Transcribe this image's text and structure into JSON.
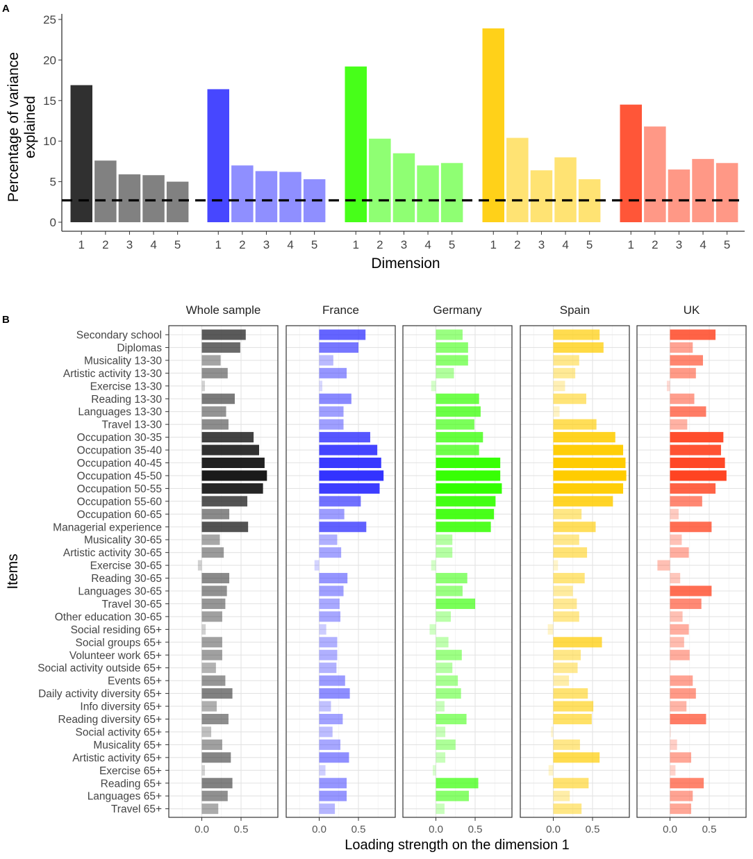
{
  "chart_data": [
    {
      "panel": "A",
      "type": "bar",
      "ylabel": "Percentage of variance\nexplained",
      "xlabel": "Dimension",
      "ylim": [
        0,
        25
      ],
      "yticks": [
        0,
        5,
        10,
        15,
        20,
        25
      ],
      "categories": [
        "1",
        "2",
        "3",
        "4",
        "5"
      ],
      "reference_line": 2.7,
      "series": [
        {
          "name": "Whole sample",
          "color": "#1a1a1a",
          "values": [
            16.9,
            7.6,
            5.9,
            5.8,
            5.0
          ]
        },
        {
          "name": "France",
          "color": "#3333ff",
          "values": [
            16.4,
            7.0,
            6.3,
            6.2,
            5.3
          ]
        },
        {
          "name": "Germany",
          "color": "#33ff00",
          "values": [
            19.2,
            10.3,
            8.5,
            7.0,
            7.3
          ]
        },
        {
          "name": "Spain",
          "color": "#ffcc00",
          "values": [
            23.9,
            10.4,
            6.4,
            8.0,
            5.3
          ]
        },
        {
          "name": "UK",
          "color": "#ff4422",
          "values": [
            14.5,
            11.8,
            6.5,
            7.8,
            7.3
          ]
        }
      ]
    },
    {
      "panel": "B",
      "type": "bar",
      "orientation": "horizontal",
      "ylabel": "Items",
      "xlabel": "Loading strength on the dimension 1",
      "xlim": [
        -0.42,
        1.0
      ],
      "xticks": [
        "0.0",
        "0.5"
      ],
      "items": [
        "Secondary school",
        "Diplomas",
        "Musicality 13-30",
        "Artistic activity 13-30",
        "Exercise 13-30",
        "Reading 13-30",
        "Languages 13-30",
        "Travel 13-30",
        "Occupation 30-35",
        "Occupation 35-40",
        "Occupation 40-45",
        "Occupation 45-50",
        "Occupation 50-55",
        "Occupation 55-60",
        "Occupation 60-65",
        "Managerial experience",
        "Musicality 30-65",
        "Artistic activity 30-65",
        "Exercise 30-65",
        "Reading 30-65",
        "Languages 30-65",
        "Travel 30-65",
        "Other education 30-65",
        "Social residing 65+",
        "Social groups 65+",
        "Volunteer work 65+",
        "Social activity outside 65+",
        "Events 65+",
        "Daily activity diversity 65+",
        "Info diversity 65+",
        "Reading diversity 65+",
        "Social activity 65+",
        "Musicality 65+",
        "Artistic activity 65+",
        "Exercise 65+",
        "Reading 65+",
        "Languages 65+",
        "Travel 65+"
      ],
      "series": [
        {
          "name": "Whole sample",
          "color": "#1a1a1a",
          "values": [
            0.56,
            0.49,
            0.24,
            0.33,
            0.04,
            0.42,
            0.31,
            0.34,
            0.66,
            0.73,
            0.8,
            0.83,
            0.78,
            0.58,
            0.35,
            0.59,
            0.23,
            0.28,
            -0.05,
            0.35,
            0.32,
            0.3,
            0.26,
            0.05,
            0.26,
            0.26,
            0.18,
            0.3,
            0.39,
            0.19,
            0.34,
            0.12,
            0.26,
            0.37,
            0.04,
            0.39,
            0.33,
            0.21
          ]
        },
        {
          "name": "France",
          "color": "#3333ff",
          "values": [
            0.59,
            0.5,
            0.18,
            0.35,
            0.04,
            0.41,
            0.31,
            0.31,
            0.65,
            0.74,
            0.79,
            0.82,
            0.77,
            0.53,
            0.32,
            0.6,
            0.23,
            0.28,
            -0.06,
            0.36,
            0.31,
            0.26,
            0.27,
            0.09,
            0.23,
            0.23,
            0.22,
            0.33,
            0.39,
            0.15,
            0.3,
            0.17,
            0.27,
            0.38,
            0.08,
            0.35,
            0.35,
            0.2
          ]
        },
        {
          "name": "Germany",
          "color": "#33ff00",
          "values": [
            0.34,
            0.41,
            0.41,
            0.23,
            -0.06,
            0.55,
            0.57,
            0.49,
            0.6,
            0.55,
            0.82,
            0.82,
            0.84,
            0.76,
            0.74,
            0.7,
            0.21,
            0.21,
            -0.06,
            0.4,
            0.34,
            0.5,
            0.19,
            -0.08,
            0.16,
            0.33,
            0.21,
            0.28,
            0.32,
            0.11,
            0.39,
            0.12,
            0.25,
            0.12,
            -0.04,
            0.54,
            0.42,
            0.11
          ]
        },
        {
          "name": "Spain",
          "color": "#ffcc00",
          "values": [
            0.59,
            0.64,
            0.33,
            0.28,
            0.15,
            0.42,
            0.08,
            0.55,
            0.79,
            0.89,
            0.92,
            0.93,
            0.89,
            0.76,
            0.36,
            0.54,
            0.33,
            0.43,
            0.06,
            0.4,
            0.25,
            0.3,
            0.33,
            -0.07,
            0.62,
            0.35,
            0.31,
            0.2,
            0.44,
            0.51,
            0.49,
            -0.03,
            0.34,
            0.59,
            -0.06,
            0.45,
            0.21,
            0.36
          ]
        },
        {
          "name": "UK",
          "color": "#ff4422",
          "values": [
            0.58,
            0.29,
            0.42,
            0.33,
            -0.04,
            0.31,
            0.46,
            0.22,
            0.68,
            0.65,
            0.7,
            0.72,
            0.58,
            0.41,
            0.11,
            0.53,
            0.15,
            0.24,
            -0.16,
            0.13,
            0.53,
            0.4,
            0.16,
            0.24,
            0.18,
            0.25,
            0.0,
            0.29,
            0.33,
            0.21,
            0.46,
            0.01,
            0.09,
            0.27,
            0.07,
            0.43,
            0.29,
            0.27
          ]
        }
      ]
    }
  ],
  "panel_labels": {
    "a": "A",
    "b": "B"
  }
}
